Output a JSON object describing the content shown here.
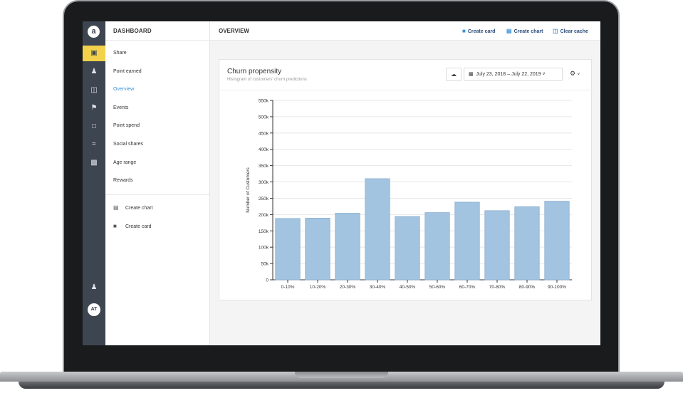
{
  "rail": {
    "logo": "a",
    "avatar": "AT",
    "icons": [
      "share-icon",
      "point-earned-icon",
      "gift-icon",
      "flag-icon",
      "chat-icon",
      "wave-icon",
      "image-icon",
      "user-settings-icon"
    ]
  },
  "nav": {
    "header": "DASHBOARD",
    "items": [
      "Share",
      "Point earned",
      "Overview",
      "Events",
      "Point spend",
      "Social shares",
      "Age range",
      "Rewards"
    ],
    "active_item": "Overview",
    "actions": [
      "Create chart",
      "Create card"
    ]
  },
  "topbar": {
    "title": "OVERVIEW",
    "create_card": "Create card",
    "create_chart": "Create chart",
    "clear_cache": "Clear cache"
  },
  "card": {
    "title": "Churn propensity",
    "subtitle": "Histogram of customers' churn predictions",
    "date_range": "July 23, 2018  –  July 22, 2019"
  },
  "colors": {
    "accent": "#3a8fd6",
    "rail": "#3d4551",
    "rail_active": "#f2d24b",
    "bar": "#a3c4e0"
  },
  "chart_data": {
    "type": "bar",
    "categories": [
      "0-10%",
      "10-20%",
      "20-30%",
      "30-40%",
      "40-50%",
      "50-60%",
      "60-70%",
      "70-80%",
      "80-90%",
      "90-100%"
    ],
    "values": [
      188000,
      189000,
      204000,
      310000,
      194000,
      206000,
      238000,
      212000,
      224000,
      241000
    ],
    "ylabel": "Number of Customers",
    "ylim": [
      0,
      550000
    ],
    "yticks": [
      "0",
      "50k",
      "100k",
      "150k",
      "200k",
      "250k",
      "300k",
      "350k",
      "400k",
      "450k",
      "500k",
      "550k"
    ],
    "grid": true
  }
}
